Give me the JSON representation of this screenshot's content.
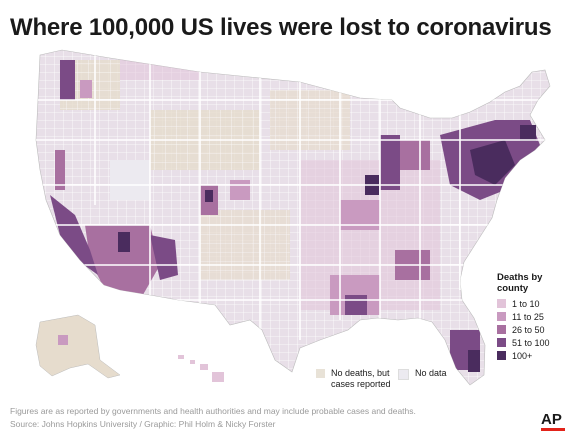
{
  "title": "Where 100,000 US lives were lost to coronavirus",
  "legend": {
    "title_line1": "Deaths by",
    "title_line2": "county",
    "items": [
      {
        "label": "1 to 10",
        "color": "#e2c4d9"
      },
      {
        "label": "11 to 25",
        "color": "#c99ac0"
      },
      {
        "label": "26 to 50",
        "color": "#a870a0"
      },
      {
        "label": "51 to 100",
        "color": "#7b4b86"
      },
      {
        "label": "100+",
        "color": "#4a2c5e"
      }
    ],
    "no_deaths_line1": "No deaths, but",
    "no_deaths_line2": "cases reported",
    "no_deaths_color": "#e8e2d7",
    "no_data": "No data",
    "no_data_color": "#eceaf0"
  },
  "footnote": {
    "line1": "Figures are as reported by governments and health authorities and may include probable cases and deaths.",
    "line2": "Source: Johns Hopkins University / Graphic: Phil Holm & Nicky Forster"
  },
  "logo": "AP"
}
